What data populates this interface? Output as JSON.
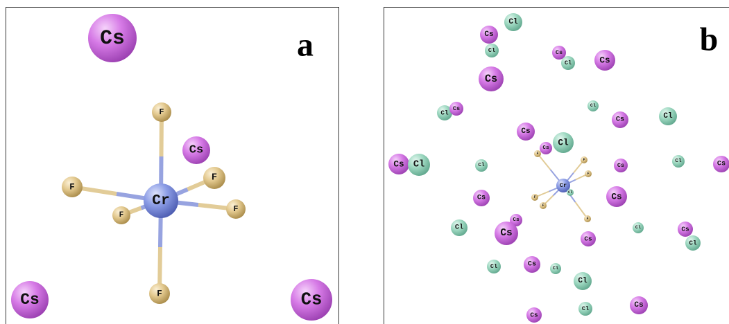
{
  "panels": [
    {
      "label": "a",
      "atoms": [
        "Cs",
        "Cs",
        "Cs",
        "Cs",
        "Cr",
        "F",
        "F",
        "F",
        "F",
        "F",
        "F"
      ]
    },
    {
      "label": "b",
      "atoms": [
        "Cl",
        "Cs",
        "Cl",
        "Cs",
        "Cl",
        "Cs",
        "Cs",
        "Cl",
        "Cl",
        "Cs",
        "Cs",
        "Cl",
        "Cs",
        "Cl",
        "Cs",
        "Cs",
        "Cl",
        "Cl",
        "Cs",
        "Cl",
        "Cs",
        "Cr",
        "Cs",
        "Cs",
        "Cs",
        "Cl",
        "Cs",
        "Cl",
        "Cs",
        "Cs",
        "Cl",
        "Cl",
        "Cs",
        "Cl",
        "Cl",
        "Cl",
        "Cs",
        "Cs",
        "F",
        "F",
        "F",
        "F",
        "F",
        "F",
        "Cl"
      ]
    }
  ]
}
